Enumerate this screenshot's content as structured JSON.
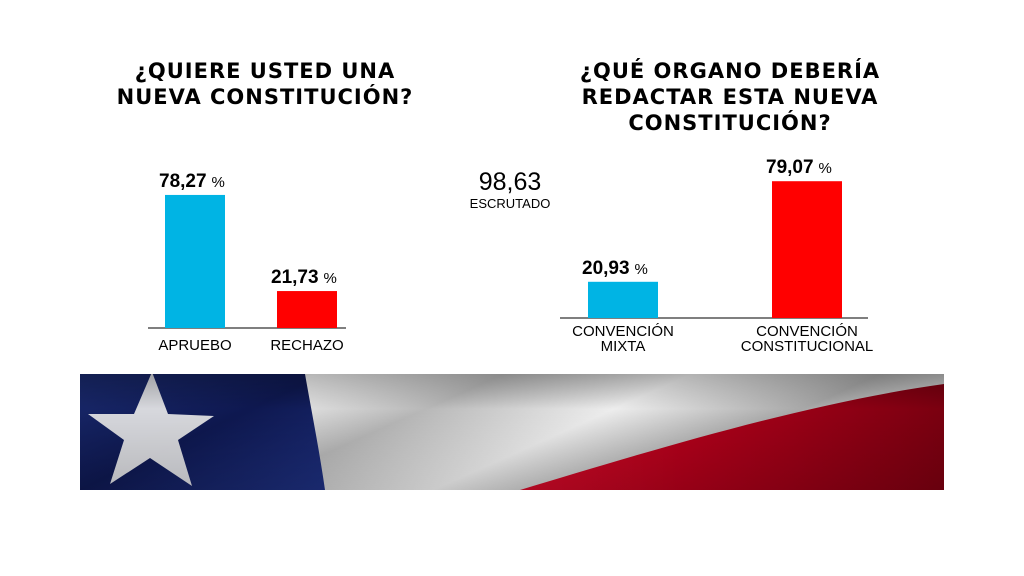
{
  "percent_sign": "%",
  "escrutado": {
    "value": "98,63",
    "label": "ESCRUTADO"
  },
  "chart_data": [
    {
      "type": "bar",
      "title": "¿QUIERE USTED UNA\nNUEVA CONSTITUCIÓN?",
      "categories": [
        "APRUEBO",
        "RECHAZO"
      ],
      "values": [
        78.27,
        21.73
      ],
      "value_labels": [
        "78,27",
        "21,73"
      ],
      "colors": [
        "#00b4e4",
        "#ff0000"
      ],
      "xlabel": "",
      "ylabel": "",
      "ylim": [
        0,
        100
      ],
      "grid": false
    },
    {
      "type": "bar",
      "title": "¿QUÉ ORGANO DEBERÍA\nREDACTAR ESTA NUEVA\nCONSTITUCIÓN?",
      "categories": [
        "CONVENCIÓN\nMIXTA",
        "CONVENCIÓN\nCONSTITUCIONAL"
      ],
      "values": [
        20.93,
        79.07
      ],
      "value_labels": [
        "20,93",
        "79,07"
      ],
      "colors": [
        "#00b4e4",
        "#ff0000"
      ],
      "xlabel": "",
      "ylabel": "",
      "ylim": [
        0,
        100
      ],
      "grid": false
    }
  ]
}
